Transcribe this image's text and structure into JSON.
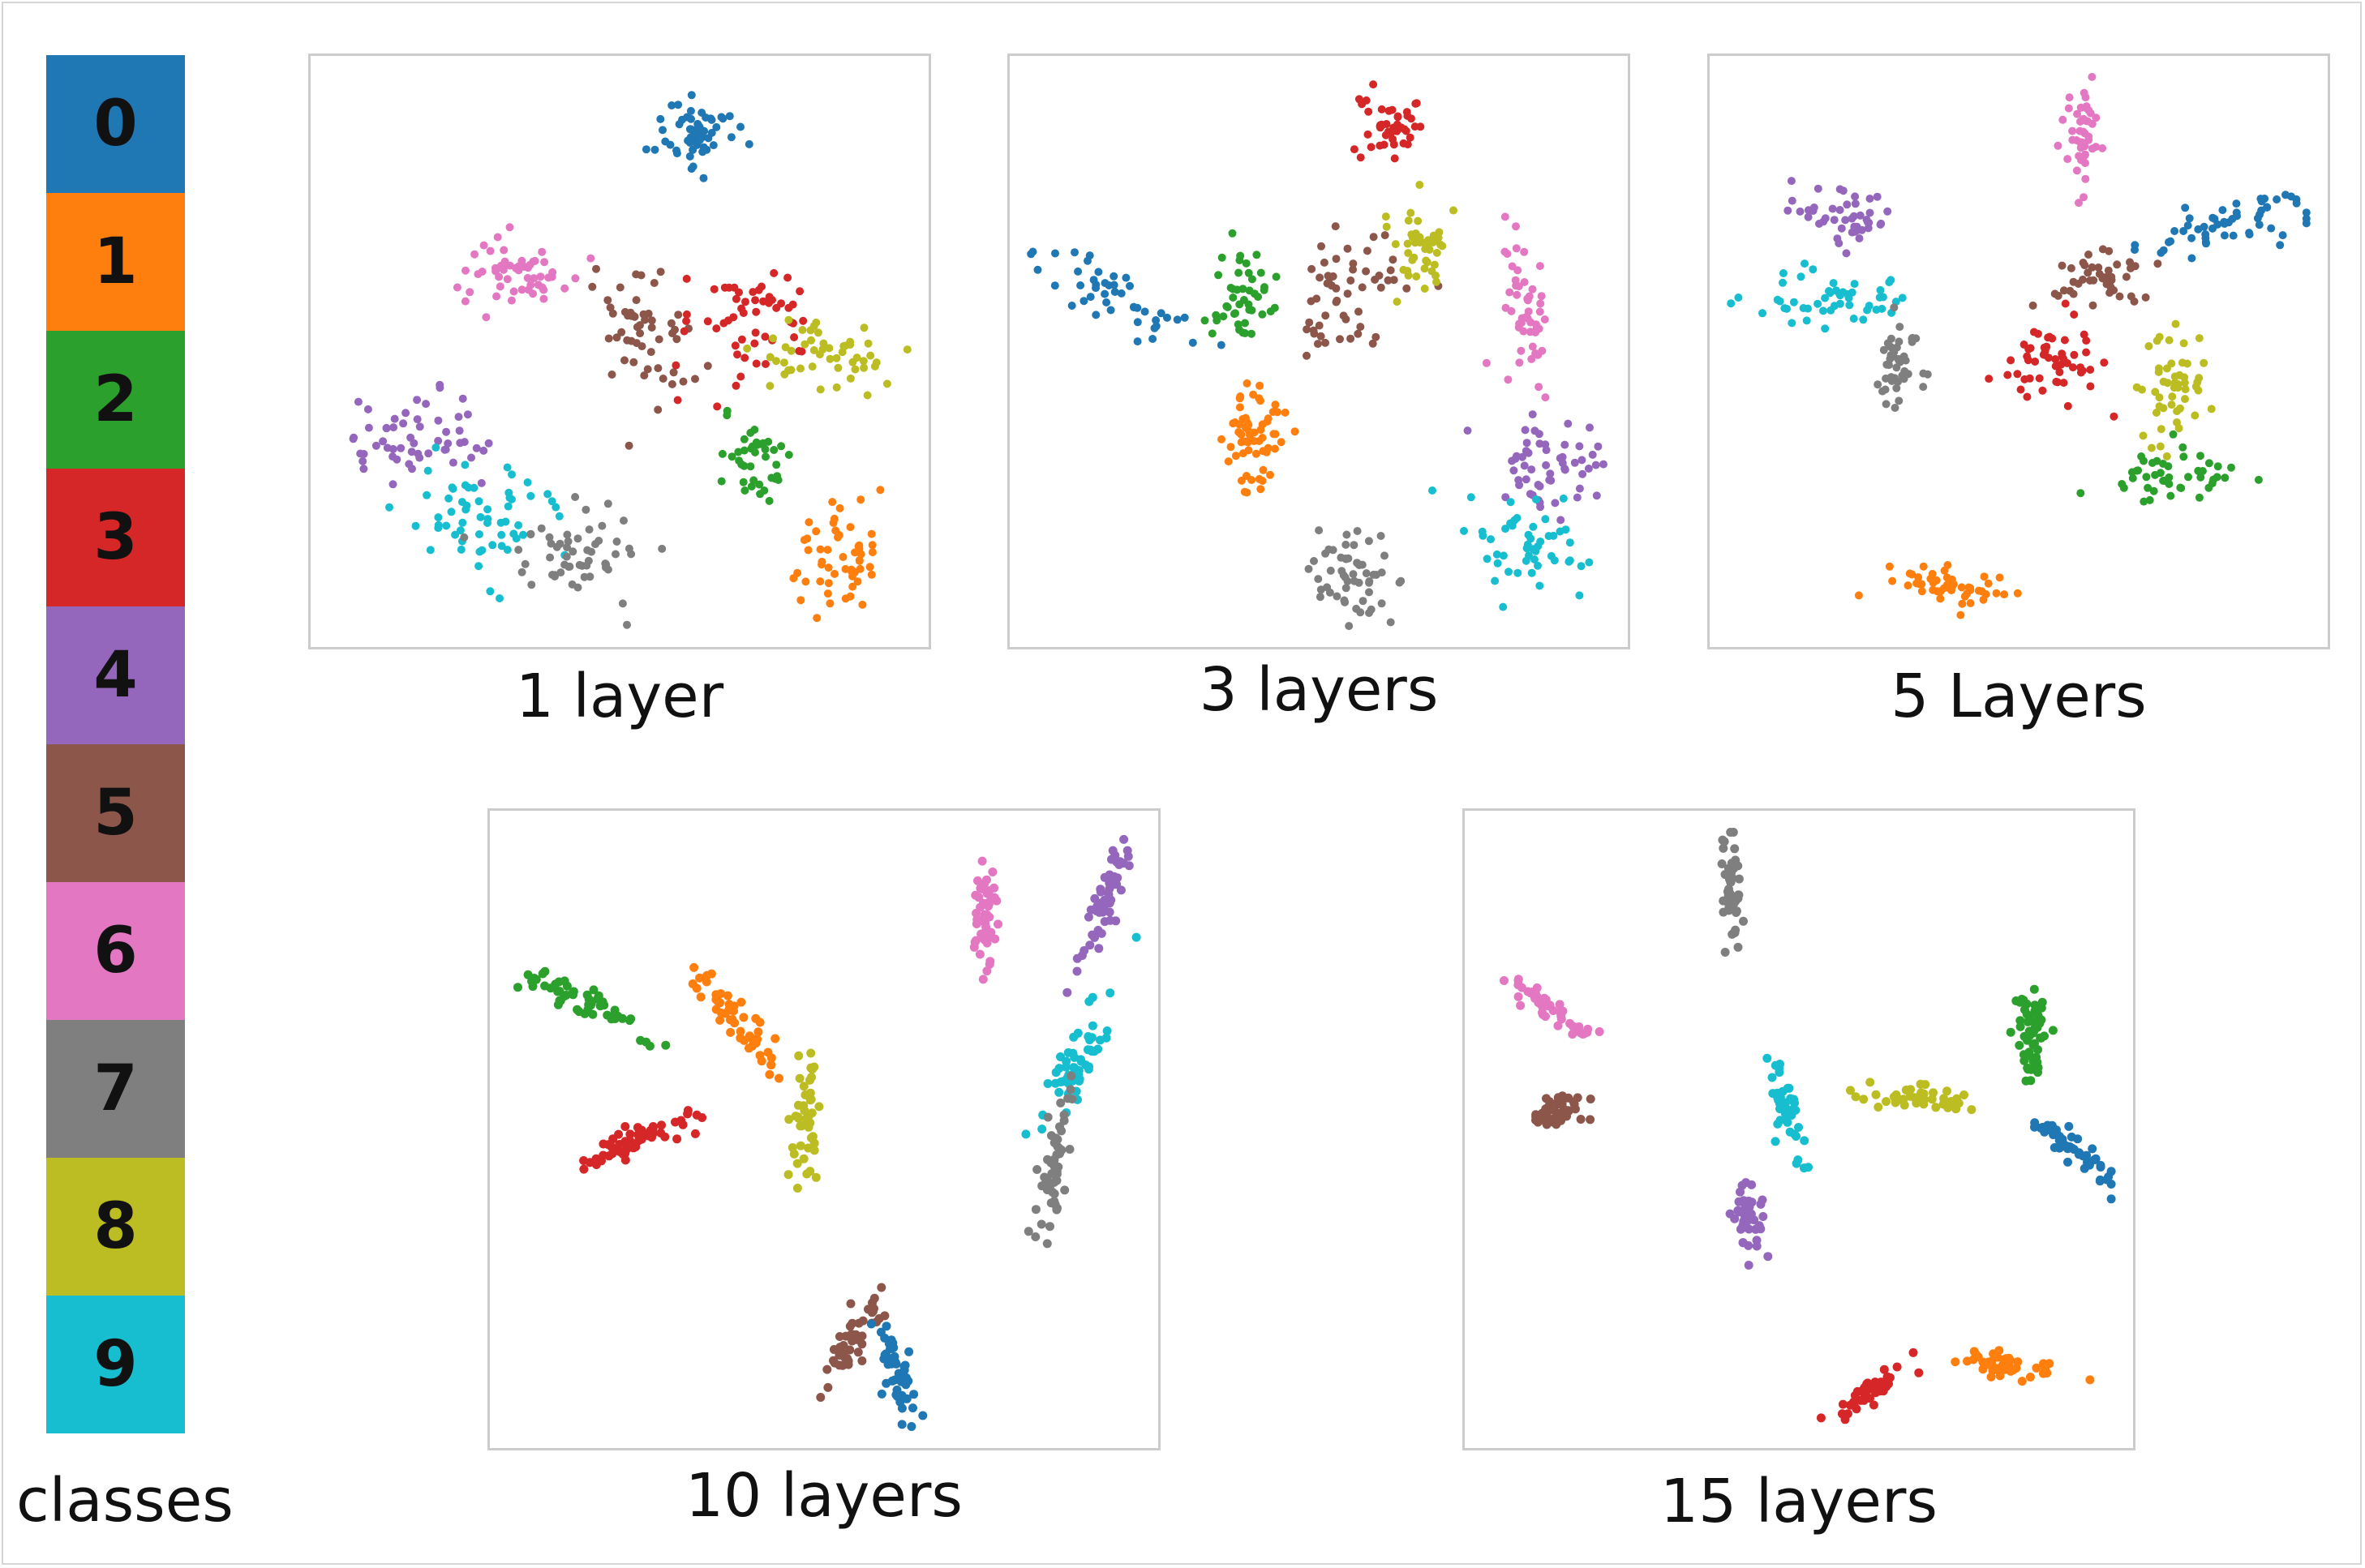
{
  "legend": {
    "title": "classes",
    "items": [
      {
        "label": "0",
        "color": "#1f77b4"
      },
      {
        "label": "1",
        "color": "#ff7f0e"
      },
      {
        "label": "2",
        "color": "#2ca02c"
      },
      {
        "label": "3",
        "color": "#d62728"
      },
      {
        "label": "4",
        "color": "#9467bd"
      },
      {
        "label": "5",
        "color": "#8c564b"
      },
      {
        "label": "6",
        "color": "#e377c2"
      },
      {
        "label": "7",
        "color": "#7f7f7f"
      },
      {
        "label": "8",
        "color": "#bcbd22"
      },
      {
        "label": "9",
        "color": "#17becf"
      }
    ]
  },
  "chart_data": [
    {
      "type": "scatter",
      "title": "1 layer",
      "xlim": [
        0,
        100
      ],
      "ylim": [
        0,
        100
      ],
      "axes_visible": false,
      "grid": false,
      "clusters": [
        {
          "class": 0,
          "points": 60,
          "center": [
            63,
            89
          ],
          "spread": [
            4,
            4
          ],
          "angle": 0
        },
        {
          "class": 6,
          "points": 55,
          "center": [
            33,
            65
          ],
          "spread": [
            6,
            4
          ],
          "angle": 0
        },
        {
          "class": 5,
          "points": 55,
          "center": [
            54,
            53
          ],
          "spread": [
            5,
            8
          ],
          "angle": 0
        },
        {
          "class": 3,
          "points": 55,
          "center": [
            72,
            55
          ],
          "spread": [
            8,
            6
          ],
          "angle": 0
        },
        {
          "class": 8,
          "points": 50,
          "center": [
            85,
            49
          ],
          "spread": [
            7,
            4
          ],
          "angle": 0
        },
        {
          "class": 2,
          "points": 40,
          "center": [
            72,
            30
          ],
          "spread": [
            4,
            5
          ],
          "angle": 0
        },
        {
          "class": 4,
          "points": 55,
          "center": [
            16,
            34
          ],
          "spread": [
            8,
            5
          ],
          "angle": 0
        },
        {
          "class": 9,
          "points": 60,
          "center": [
            25,
            22
          ],
          "spread": [
            8,
            6
          ],
          "angle": 0
        },
        {
          "class": 7,
          "points": 55,
          "center": [
            43,
            14
          ],
          "spread": [
            7,
            5
          ],
          "angle": 0
        },
        {
          "class": 1,
          "points": 55,
          "center": [
            87,
            13
          ],
          "spread": [
            5,
            6
          ],
          "angle": 0
        }
      ]
    },
    {
      "type": "scatter",
      "title": "3 layers",
      "xlim": [
        0,
        100
      ],
      "ylim": [
        0,
        100
      ],
      "axes_visible": false,
      "grid": false,
      "clusters": [
        {
          "class": 3,
          "points": 45,
          "center": [
            62,
            91
          ],
          "spread": [
            3,
            4
          ],
          "angle": 0
        },
        {
          "class": 5,
          "points": 55,
          "center": [
            55,
            62
          ],
          "spread": [
            6,
            8
          ],
          "angle": 0
        },
        {
          "class": 8,
          "points": 45,
          "center": [
            67,
            68
          ],
          "spread": [
            4,
            5
          ],
          "angle": 0
        },
        {
          "class": 0,
          "points": 45,
          "center": [
            14,
            60
          ],
          "spread": [
            9,
            3
          ],
          "angle": -30
        },
        {
          "class": 2,
          "points": 45,
          "center": [
            37,
            60
          ],
          "spread": [
            3,
            7
          ],
          "angle": 0
        },
        {
          "class": 6,
          "points": 50,
          "center": [
            85,
            56
          ],
          "spread": [
            3,
            9
          ],
          "angle": 0
        },
        {
          "class": 1,
          "points": 60,
          "center": [
            39,
            35
          ],
          "spread": [
            3,
            7
          ],
          "angle": 0
        },
        {
          "class": 4,
          "points": 55,
          "center": [
            89,
            29
          ],
          "spread": [
            6,
            6
          ],
          "angle": 0
        },
        {
          "class": 9,
          "points": 50,
          "center": [
            85,
            16
          ],
          "spread": [
            7,
            5
          ],
          "angle": 0
        },
        {
          "class": 7,
          "points": 55,
          "center": [
            57,
            10
          ],
          "spread": [
            5,
            5
          ],
          "angle": 0
        }
      ]
    },
    {
      "type": "scatter",
      "title": "5 Layers",
      "xlim": [
        0,
        100
      ],
      "ylim": [
        0,
        100
      ],
      "axes_visible": false,
      "grid": false,
      "clusters": [
        {
          "class": 6,
          "points": 45,
          "center": [
            61,
            87
          ],
          "spread": [
            2,
            6
          ],
          "angle": 0
        },
        {
          "class": 0,
          "points": 55,
          "center": [
            87,
            73
          ],
          "spread": [
            10,
            2.5
          ],
          "angle": 15
        },
        {
          "class": 4,
          "points": 45,
          "center": [
            20,
            74
          ],
          "spread": [
            6,
            3
          ],
          "angle": -20
        },
        {
          "class": 9,
          "points": 50,
          "center": [
            17,
            60
          ],
          "spread": [
            9,
            3
          ],
          "angle": 0
        },
        {
          "class": 5,
          "points": 45,
          "center": [
            63,
            63
          ],
          "spread": [
            5,
            3
          ],
          "angle": 0
        },
        {
          "class": 7,
          "points": 45,
          "center": [
            30,
            49
          ],
          "spread": [
            3,
            5
          ],
          "angle": 0
        },
        {
          "class": 3,
          "points": 55,
          "center": [
            56,
            48
          ],
          "spread": [
            6,
            4
          ],
          "angle": -15
        },
        {
          "class": 8,
          "points": 50,
          "center": [
            76,
            44
          ],
          "spread": [
            4,
            6
          ],
          "angle": 0
        },
        {
          "class": 2,
          "points": 45,
          "center": [
            76,
            28
          ],
          "spread": [
            7,
            3
          ],
          "angle": 0
        },
        {
          "class": 1,
          "points": 50,
          "center": [
            37,
            8
          ],
          "spread": [
            6,
            2
          ],
          "angle": 0
        }
      ]
    },
    {
      "type": "scatter",
      "title": "10 layers",
      "xlim": [
        0,
        100
      ],
      "ylim": [
        0,
        100
      ],
      "axes_visible": false,
      "grid": false,
      "clusters": [
        {
          "class": 6,
          "points": 50,
          "center": [
            75,
            86
          ],
          "spread": [
            1.2,
            6
          ],
          "angle": 0
        },
        {
          "class": 4,
          "points": 55,
          "center": [
            94,
            87
          ],
          "spread": [
            1.3,
            7
          ],
          "angle": -20
        },
        {
          "class": 2,
          "points": 55,
          "center": [
            12,
            71
          ],
          "spread": [
            7,
            1.4
          ],
          "angle": -28
        },
        {
          "class": 1,
          "points": 50,
          "center": [
            36,
            68
          ],
          "spread": [
            6,
            1.3
          ],
          "angle": -55
        },
        {
          "class": 9,
          "points": 55,
          "center": [
            90,
            62
          ],
          "spread": [
            8,
            1.5
          ],
          "angle": 62
        },
        {
          "class": 8,
          "points": 45,
          "center": [
            47,
            51
          ],
          "spread": [
            1.5,
            5.5
          ],
          "angle": 0
        },
        {
          "class": 3,
          "points": 55,
          "center": [
            20,
            48
          ],
          "spread": [
            7,
            1.6
          ],
          "angle": 20
        },
        {
          "class": 7,
          "points": 55,
          "center": [
            86,
            43
          ],
          "spread": [
            1.6,
            7
          ],
          "angle": -8
        },
        {
          "class": 5,
          "points": 45,
          "center": [
            55,
            16
          ],
          "spread": [
            1.5,
            5
          ],
          "angle": -30
        },
        {
          "class": 0,
          "points": 50,
          "center": [
            62,
            9
          ],
          "spread": [
            1.5,
            6
          ],
          "angle": 15
        }
      ]
    },
    {
      "type": "scatter",
      "title": "15 layers",
      "xlim": [
        0,
        100
      ],
      "ylim": [
        0,
        100
      ],
      "axes_visible": false,
      "grid": false,
      "clusters": [
        {
          "class": 7,
          "points": 50,
          "center": [
            39,
            91
          ],
          "spread": [
            1,
            6
          ],
          "angle": 5
        },
        {
          "class": 6,
          "points": 45,
          "center": [
            11,
            70
          ],
          "spread": [
            5,
            1.1
          ],
          "angle": -35
        },
        {
          "class": 2,
          "points": 55,
          "center": [
            87,
            66
          ],
          "spread": [
            2,
            4
          ],
          "angle": 0
        },
        {
          "class": 5,
          "points": 45,
          "center": [
            12,
            53
          ],
          "spread": [
            3,
            2
          ],
          "angle": 30
        },
        {
          "class": 9,
          "points": 45,
          "center": [
            48,
            53
          ],
          "spread": [
            1.5,
            5
          ],
          "angle": 15
        },
        {
          "class": 8,
          "points": 45,
          "center": [
            70,
            55
          ],
          "spread": [
            6,
            1.6
          ],
          "angle": -5
        },
        {
          "class": 0,
          "points": 55,
          "center": [
            93,
            47
          ],
          "spread": [
            5,
            1.2
          ],
          "angle": -40
        },
        {
          "class": 4,
          "points": 45,
          "center": [
            42,
            35
          ],
          "spread": [
            1.8,
            4
          ],
          "angle": 0
        },
        {
          "class": 3,
          "points": 45,
          "center": [
            61,
            7
          ],
          "spread": [
            4.5,
            1.1
          ],
          "angle": 35
        },
        {
          "class": 1,
          "points": 45,
          "center": [
            83,
            11
          ],
          "spread": [
            5,
            1.2
          ],
          "angle": -12
        }
      ]
    }
  ]
}
